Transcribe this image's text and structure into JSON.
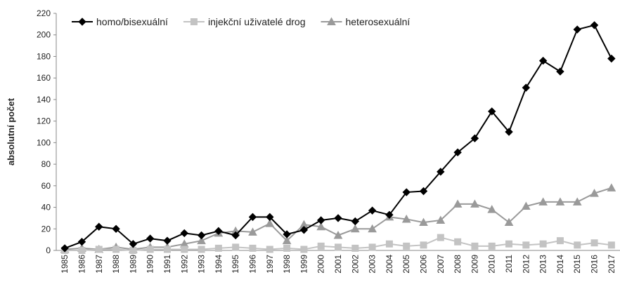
{
  "chart_data": {
    "type": "line",
    "y_label": "absolutní počet",
    "categories": [
      "1985",
      "1986",
      "1987",
      "1988",
      "1989",
      "1990",
      "1991",
      "1992",
      "1993",
      "1994",
      "1995",
      "1996",
      "1997",
      "1998",
      "1999",
      "2000",
      "2001",
      "2002",
      "2003",
      "2004",
      "2005",
      "2006",
      "2007",
      "2008",
      "2009",
      "2010",
      "2011",
      "2012",
      "2013",
      "2014",
      "2015",
      "2016",
      "2017"
    ],
    "series": [
      {
        "name": "homo/bisexuální",
        "color": "#000000",
        "marker": "diamond",
        "values": [
          2,
          8,
          22,
          20,
          6,
          11,
          9,
          16,
          14,
          18,
          14,
          31,
          31,
          15,
          19,
          28,
          30,
          27,
          37,
          33,
          54,
          55,
          73,
          91,
          104,
          129,
          110,
          151,
          176,
          166,
          205,
          209,
          178
        ]
      },
      {
        "name": "injekční uživatelé drog",
        "color": "#c3c3c3",
        "marker": "square",
        "values": [
          0,
          0,
          1,
          1,
          0,
          1,
          1,
          1,
          1,
          2,
          3,
          2,
          1,
          2,
          1,
          4,
          3,
          2,
          3,
          6,
          4,
          5,
          12,
          8,
          4,
          4,
          6,
          5,
          6,
          9,
          5,
          7,
          5
        ]
      },
      {
        "name": "heterosexuální",
        "color": "#9a9a9a",
        "marker": "triangle",
        "values": [
          1,
          2,
          1,
          3,
          1,
          3,
          3,
          6,
          9,
          16,
          18,
          17,
          25,
          9,
          24,
          22,
          14,
          20,
          20,
          31,
          29,
          26,
          28,
          43,
          43,
          38,
          26,
          41,
          45,
          45,
          45,
          53,
          58
        ]
      }
    ],
    "ylim": [
      0,
      220
    ],
    "yticks": [
      0,
      20,
      40,
      60,
      80,
      100,
      120,
      140,
      160,
      180,
      200,
      220
    ],
    "grid": false,
    "legend": "top-left"
  }
}
